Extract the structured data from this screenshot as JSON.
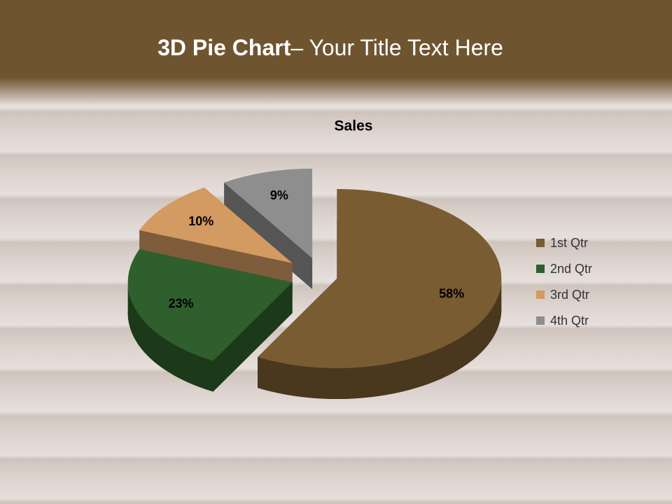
{
  "title_bold": "3D Pie Chart",
  "title_rest": "– Your Title Text Here",
  "chart_data": {
    "type": "pie",
    "title": "Sales",
    "categories": [
      "1st Qtr",
      "2nd Qtr",
      "3rd Qtr",
      "4th Qtr"
    ],
    "values": [
      58,
      23,
      10,
      9
    ],
    "value_labels": [
      "58%",
      "23%",
      "10%",
      "9%"
    ],
    "colors": [
      "#7a5c32",
      "#2f5f2c",
      "#d39a62",
      "#8e8e8e"
    ],
    "legend": "right"
  }
}
